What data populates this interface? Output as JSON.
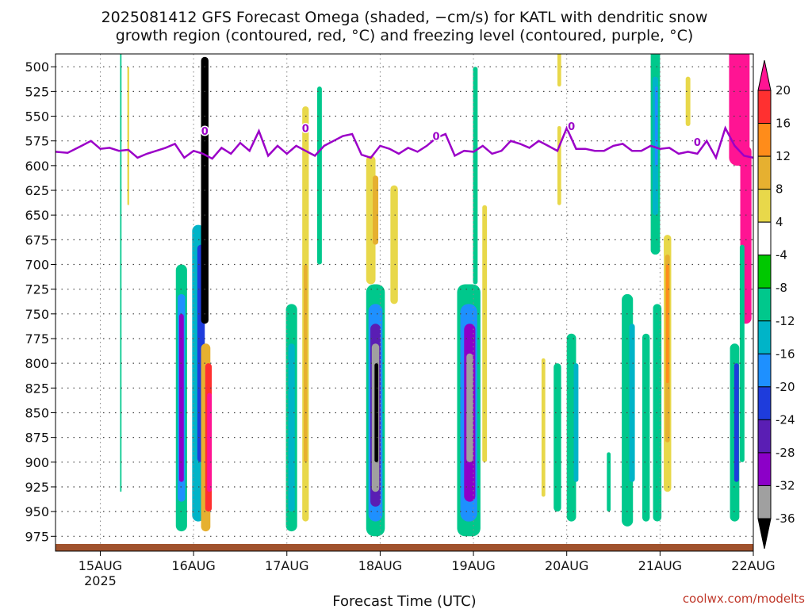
{
  "chart_data": {
    "type": "heatmap",
    "title_lines": [
      "2025081412 GFS Forecast Omega (shaded, −cm/s) for KATL with dendritic snow",
      "growth region (contoured, red, °C) and freezing level (contoured, purple, °C)"
    ],
    "xlabel": "Forecast Time (UTC)",
    "x_ticks": [
      "15AUG",
      "16AUG",
      "17AUG",
      "18AUG",
      "19AUG",
      "20AUG",
      "21AUG",
      "22AUG"
    ],
    "x_year_label": "2025",
    "y_ticks": [
      500,
      525,
      550,
      575,
      600,
      625,
      650,
      675,
      700,
      725,
      750,
      775,
      800,
      825,
      850,
      875,
      900,
      925,
      950,
      975
    ],
    "ylim": [
      487,
      990
    ],
    "xlim_days": [
      -0.48,
      7.0
    ],
    "grid": true,
    "colorbar": {
      "labels": [
        20,
        16,
        12,
        8,
        4,
        -4,
        -8,
        -12,
        -16,
        -20,
        -24,
        -28,
        -32,
        -36
      ],
      "colors": [
        "#ff1493",
        "#ff3030",
        "#ff8c1a",
        "#e6b030",
        "#e8d84a",
        "#ffffff",
        "#00c800",
        "#00c88c",
        "#00b4c8",
        "#1e90ff",
        "#1e3cdc",
        "#5a1eb4",
        "#8c00c8",
        "#a0a0a0",
        "#000000"
      ]
    },
    "freezing_level": {
      "label": "0",
      "days": [
        -0.48,
        -0.35,
        -0.2,
        -0.1,
        0.0,
        0.1,
        0.2,
        0.3,
        0.4,
        0.5,
        0.6,
        0.7,
        0.8,
        0.9,
        1.0,
        1.1,
        1.2,
        1.3,
        1.4,
        1.5,
        1.6,
        1.7,
        1.8,
        1.9,
        2.0,
        2.1,
        2.2,
        2.3,
        2.4,
        2.5,
        2.6,
        2.7,
        2.8,
        2.9,
        3.0,
        3.1,
        3.2,
        3.3,
        3.4,
        3.5,
        3.6,
        3.7,
        3.8,
        3.9,
        4.0,
        4.1,
        4.2,
        4.3,
        4.4,
        4.5,
        4.6,
        4.7,
        4.8,
        4.9,
        5.0,
        5.1,
        5.2,
        5.3,
        5.4,
        5.5,
        5.6,
        5.7,
        5.8,
        5.9,
        6.0,
        6.1,
        6.2,
        6.3,
        6.4,
        6.5,
        6.6,
        6.7,
        6.8,
        6.9,
        7.0
      ],
      "pressure": [
        586,
        587,
        580,
        575,
        583,
        582,
        585,
        584,
        592,
        588,
        585,
        582,
        578,
        592,
        585,
        588,
        593,
        582,
        588,
        577,
        585,
        565,
        590,
        580,
        588,
        580,
        585,
        590,
        580,
        575,
        570,
        568,
        589,
        592,
        580,
        583,
        588,
        582,
        586,
        580,
        572,
        568,
        590,
        585,
        586,
        580,
        588,
        585,
        575,
        578,
        582,
        575,
        580,
        585,
        562,
        583,
        583,
        585,
        585,
        580,
        578,
        585,
        585,
        580,
        583,
        582,
        588,
        586,
        588,
        575,
        592,
        562,
        580,
        590,
        592
      ]
    },
    "omega_cells": [
      {
        "day": 0.87,
        "p0": 700,
        "p1": 970,
        "w": 0.12,
        "v": -8
      },
      {
        "day": 0.87,
        "p0": 730,
        "p1": 940,
        "w": 0.08,
        "v": -16
      },
      {
        "day": 0.87,
        "p0": 750,
        "p1": 920,
        "w": 0.05,
        "v": -28
      },
      {
        "day": 1.05,
        "p0": 660,
        "p1": 960,
        "w": 0.13,
        "v": -12
      },
      {
        "day": 1.08,
        "p0": 680,
        "p1": 900,
        "w": 0.08,
        "v": -20
      },
      {
        "day": 1.12,
        "p0": 490,
        "p1": 760,
        "w": 0.08,
        "v": -36
      },
      {
        "day": 1.13,
        "p0": 780,
        "p1": 970,
        "w": 0.1,
        "v": 8
      },
      {
        "day": 1.16,
        "p0": 800,
        "p1": 950,
        "w": 0.07,
        "v": 16
      },
      {
        "day": 1.17,
        "p0": 830,
        "p1": 930,
        "w": 0.05,
        "v": 20
      },
      {
        "day": 2.05,
        "p0": 740,
        "p1": 970,
        "w": 0.12,
        "v": -8
      },
      {
        "day": 2.05,
        "p0": 780,
        "p1": 950,
        "w": 0.07,
        "v": -12
      },
      {
        "day": 2.2,
        "p0": 540,
        "p1": 960,
        "w": 0.07,
        "v": 4
      },
      {
        "day": 2.2,
        "p0": 700,
        "p1": 900,
        "w": 0.04,
        "v": 8
      },
      {
        "day": 2.35,
        "p0": 520,
        "p1": 700,
        "w": 0.05,
        "v": -8
      },
      {
        "day": 2.95,
        "p0": 720,
        "p1": 975,
        "w": 0.2,
        "v": -8
      },
      {
        "day": 2.95,
        "p0": 740,
        "p1": 960,
        "w": 0.15,
        "v": -16
      },
      {
        "day": 2.95,
        "p0": 760,
        "p1": 945,
        "w": 0.11,
        "v": -24
      },
      {
        "day": 2.95,
        "p0": 780,
        "p1": 930,
        "w": 0.08,
        "v": -32
      },
      {
        "day": 2.96,
        "p0": 800,
        "p1": 900,
        "w": 0.04,
        "v": -36
      },
      {
        "day": 2.9,
        "p0": 590,
        "p1": 720,
        "w": 0.1,
        "v": 4
      },
      {
        "day": 2.95,
        "p0": 610,
        "p1": 680,
        "w": 0.06,
        "v": 8
      },
      {
        "day": 3.15,
        "p0": 620,
        "p1": 740,
        "w": 0.08,
        "v": 4
      },
      {
        "day": 3.95,
        "p0": 720,
        "p1": 975,
        "w": 0.25,
        "v": -8
      },
      {
        "day": 3.95,
        "p0": 740,
        "p1": 960,
        "w": 0.18,
        "v": -16
      },
      {
        "day": 3.96,
        "p0": 760,
        "p1": 940,
        "w": 0.12,
        "v": -28
      },
      {
        "day": 3.96,
        "p0": 790,
        "p1": 900,
        "w": 0.07,
        "v": -32
      },
      {
        "day": 4.02,
        "p0": 500,
        "p1": 720,
        "w": 0.05,
        "v": -8
      },
      {
        "day": 4.12,
        "p0": 640,
        "p1": 900,
        "w": 0.05,
        "v": 4
      },
      {
        "day": 4.9,
        "p0": 800,
        "p1": 950,
        "w": 0.08,
        "v": -8
      },
      {
        "day": 4.75,
        "p0": 795,
        "p1": 935,
        "w": 0.04,
        "v": 4
      },
      {
        "day": 5.05,
        "p0": 770,
        "p1": 960,
        "w": 0.1,
        "v": -8
      },
      {
        "day": 5.1,
        "p0": 800,
        "p1": 920,
        "w": 0.05,
        "v": -12
      },
      {
        "day": 5.45,
        "p0": 890,
        "p1": 950,
        "w": 0.04,
        "v": -8
      },
      {
        "day": 5.65,
        "p0": 730,
        "p1": 965,
        "w": 0.12,
        "v": -8
      },
      {
        "day": 5.7,
        "p0": 760,
        "p1": 920,
        "w": 0.06,
        "v": -12
      },
      {
        "day": 5.85,
        "p0": 770,
        "p1": 960,
        "w": 0.08,
        "v": -8
      },
      {
        "day": 5.95,
        "p0": 480,
        "p1": 690,
        "w": 0.1,
        "v": -8
      },
      {
        "day": 5.95,
        "p0": 510,
        "p1": 650,
        "w": 0.06,
        "v": -12
      },
      {
        "day": 5.96,
        "p0": 520,
        "p1": 600,
        "w": 0.03,
        "v": -16
      },
      {
        "day": 5.97,
        "p0": 740,
        "p1": 960,
        "w": 0.09,
        "v": -8
      },
      {
        "day": 6.08,
        "p0": 670,
        "p1": 930,
        "w": 0.08,
        "v": 4
      },
      {
        "day": 6.08,
        "p0": 690,
        "p1": 880,
        "w": 0.05,
        "v": 8
      },
      {
        "day": 6.08,
        "p0": 700,
        "p1": 820,
        "w": 0.03,
        "v": 12
      },
      {
        "day": 6.3,
        "p0": 510,
        "p1": 560,
        "w": 0.05,
        "v": 4
      },
      {
        "day": 6.85,
        "p0": 480,
        "p1": 600,
        "w": 0.22,
        "v": 20
      },
      {
        "day": 6.92,
        "p0": 580,
        "p1": 760,
        "w": 0.12,
        "v": 20
      },
      {
        "day": 6.8,
        "p0": 780,
        "p1": 960,
        "w": 0.1,
        "v": -8
      },
      {
        "day": 6.82,
        "p0": 800,
        "p1": 920,
        "w": 0.05,
        "v": -20
      },
      {
        "day": 6.88,
        "p0": 680,
        "p1": 900,
        "w": 0.05,
        "v": -8
      },
      {
        "day": 4.92,
        "p0": 480,
        "p1": 520,
        "w": 0.04,
        "v": 4
      },
      {
        "day": 4.92,
        "p0": 560,
        "p1": 640,
        "w": 0.04,
        "v": 4
      },
      {
        "day": 0.3,
        "p0": 500,
        "p1": 640,
        "w": 0.02,
        "v": 4
      },
      {
        "day": 0.22,
        "p0": 480,
        "p1": 930,
        "w": 0.015,
        "v": -8
      }
    ]
  },
  "credit": "coolwx.com/modelts"
}
